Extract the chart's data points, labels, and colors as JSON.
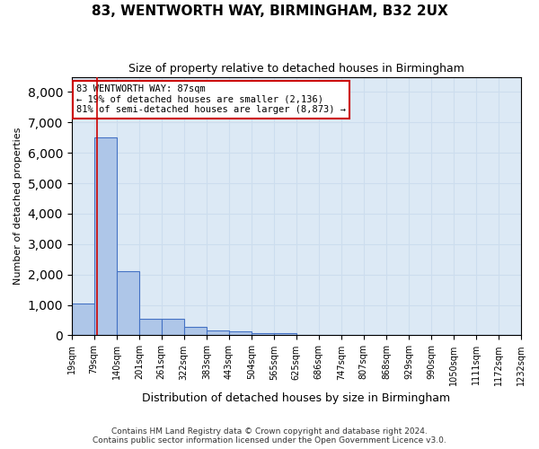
{
  "title1": "83, WENTWORTH WAY, BIRMINGHAM, B32 2UX",
  "title2": "Size of property relative to detached houses in Birmingham",
  "xlabel": "Distribution of detached houses by size in Birmingham",
  "ylabel": "Number of detached properties",
  "annotation_line1": "83 WENTWORTH WAY: 87sqm",
  "annotation_line2": "← 19% of detached houses are smaller (2,136)",
  "annotation_line3": "81% of semi-detached houses are larger (8,873) →",
  "property_size_sqm": 87,
  "footer1": "Contains HM Land Registry data © Crown copyright and database right 2024.",
  "footer2": "Contains public sector information licensed under the Open Government Licence v3.0.",
  "bin_labels": [
    "19sqm",
    "79sqm",
    "140sqm",
    "201sqm",
    "261sqm",
    "322sqm",
    "383sqm",
    "443sqm",
    "504sqm",
    "565sqm",
    "625sqm",
    "686sqm",
    "747sqm",
    "807sqm",
    "868sqm",
    "929sqm",
    "990sqm",
    "1050sqm",
    "1111sqm",
    "1172sqm",
    "1232sqm"
  ],
  "bin_edges": [
    19,
    79,
    140,
    201,
    261,
    322,
    383,
    443,
    504,
    565,
    625,
    686,
    747,
    807,
    868,
    929,
    990,
    1050,
    1111,
    1172,
    1232
  ],
  "bar_heights": [
    1050,
    6500,
    2100,
    530,
    530,
    280,
    170,
    120,
    80,
    80,
    0,
    0,
    0,
    0,
    0,
    0,
    0,
    0,
    0,
    0
  ],
  "bar_color": "#aec6e8",
  "bar_edge_color": "#4472c4",
  "red_line_x": 87,
  "ylim": [
    0,
    8500
  ],
  "yticks": [
    0,
    1000,
    2000,
    3000,
    4000,
    5000,
    6000,
    7000,
    8000
  ],
  "grid_color": "#ccddee",
  "bg_color": "#dce9f5"
}
